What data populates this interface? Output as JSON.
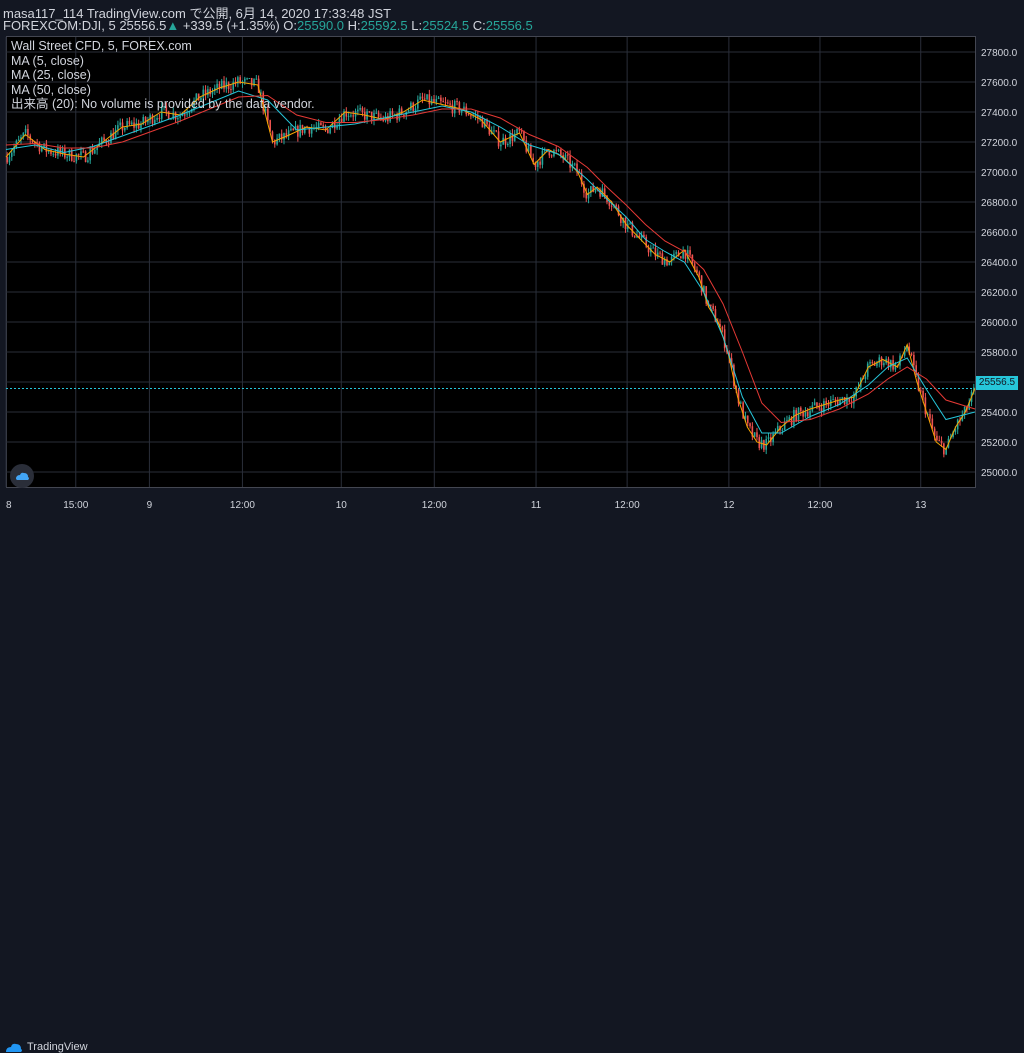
{
  "header": {
    "line1": "masa117_114 TradingView.com で公開, 6月 14, 2020 17:33:48 JST",
    "symbol": "FOREXCOM:DJI, 5",
    "last": "25556.5",
    "change": "+339.5 (+1.35%)",
    "o_label": "O:",
    "o": "25590.0",
    "h_label": "H:",
    "h": "25592.5",
    "l_label": "L:",
    "l": "25524.5",
    "c_label": "C:",
    "c": "25556.5"
  },
  "legend": {
    "title": "Wall Street CFD, 5, FOREX.com",
    "ma5": "MA (5, close)",
    "ma25": "MA (25, close)",
    "ma50": "MA (50, close)",
    "volume": "出来高 (20): No volume is provided by the data vendor."
  },
  "price_tag": "25556.5",
  "footer": {
    "brand": "TradingView"
  },
  "colors": {
    "up": "#26a69a",
    "down": "#ef5350",
    "ma5": "#f7a600",
    "ma25": "#26c6da",
    "ma50": "#e53935",
    "grid": "#2a2e39",
    "text": "#d1d4dc",
    "price_line": "#26c6da"
  },
  "chart_data": {
    "type": "line",
    "title": "Wall Street CFD, 5, FOREX.com",
    "xlabel": "",
    "ylabel": "",
    "ylim": [
      24900,
      27900
    ],
    "y_ticks": [
      25000,
      25200,
      25400,
      25600,
      25800,
      26000,
      26200,
      26400,
      26600,
      26800,
      27000,
      27200,
      27400,
      27600,
      27800
    ],
    "y_tick_labels": [
      "25000.0",
      "25200.0",
      "25400.0",
      "25600.0",
      "25800.0",
      "26000.0",
      "26200.0",
      "26400.0",
      "26600.0",
      "26800.0",
      "27000.0",
      "27200.0",
      "27400.0",
      "27600.0",
      "27800.0"
    ],
    "x_ticks": [
      {
        "label": "8",
        "x": 0.0
      },
      {
        "label": "15:00",
        "x": 0.072
      },
      {
        "label": "9",
        "x": 0.148
      },
      {
        "label": "12:00",
        "x": 0.244
      },
      {
        "label": "10",
        "x": 0.346
      },
      {
        "label": "12:00",
        "x": 0.442
      },
      {
        "label": "11",
        "x": 0.547
      },
      {
        "label": "12:00",
        "x": 0.641
      },
      {
        "label": "12",
        "x": 0.746
      },
      {
        "label": "12:00",
        "x": 0.84
      },
      {
        "label": "13",
        "x": 0.944
      }
    ],
    "grid": true,
    "series": [
      {
        "name": "MA (5, close)",
        "x": [
          0.0,
          0.02,
          0.04,
          0.06,
          0.08,
          0.1,
          0.12,
          0.14,
          0.16,
          0.18,
          0.2,
          0.22,
          0.24,
          0.26,
          0.275,
          0.29,
          0.31,
          0.33,
          0.35,
          0.37,
          0.39,
          0.41,
          0.43,
          0.45,
          0.47,
          0.49,
          0.51,
          0.53,
          0.545,
          0.56,
          0.575,
          0.59,
          0.6,
          0.61,
          0.625,
          0.64,
          0.655,
          0.67,
          0.685,
          0.7,
          0.715,
          0.725,
          0.735,
          0.745,
          0.755,
          0.765,
          0.775,
          0.785,
          0.8,
          0.815,
          0.83,
          0.845,
          0.86,
          0.875,
          0.89,
          0.905,
          0.92,
          0.93,
          0.94,
          0.95,
          0.96,
          0.97,
          0.98,
          0.99,
          1.0
        ],
        "values": [
          27100,
          27250,
          27150,
          27120,
          27100,
          27200,
          27300,
          27320,
          27400,
          27380,
          27500,
          27560,
          27600,
          27580,
          27200,
          27240,
          27300,
          27280,
          27400,
          27380,
          27350,
          27400,
          27480,
          27450,
          27420,
          27350,
          27200,
          27260,
          27050,
          27150,
          27100,
          27000,
          26850,
          26900,
          26800,
          26650,
          26550,
          26450,
          26400,
          26480,
          26300,
          26100,
          26000,
          25800,
          25500,
          25300,
          25200,
          25180,
          25300,
          25380,
          25420,
          25450,
          25480,
          25500,
          25700,
          25750,
          25700,
          25850,
          25600,
          25400,
          25200,
          25150,
          25300,
          25400,
          25556
        ]
      },
      {
        "name": "MA (25, close)",
        "x": [
          0.0,
          0.03,
          0.06,
          0.09,
          0.12,
          0.15,
          0.18,
          0.21,
          0.24,
          0.27,
          0.3,
          0.33,
          0.36,
          0.39,
          0.42,
          0.45,
          0.48,
          0.51,
          0.54,
          0.57,
          0.6,
          0.62,
          0.64,
          0.66,
          0.68,
          0.7,
          0.72,
          0.74,
          0.76,
          0.78,
          0.8,
          0.83,
          0.86,
          0.89,
          0.91,
          0.93,
          0.95,
          0.97,
          1.0
        ],
        "values": [
          27150,
          27180,
          27130,
          27170,
          27240,
          27310,
          27380,
          27460,
          27540,
          27480,
          27280,
          27300,
          27320,
          27360,
          27400,
          27440,
          27400,
          27300,
          27180,
          27120,
          26950,
          26820,
          26700,
          26550,
          26470,
          26400,
          26200,
          25900,
          25500,
          25260,
          25260,
          25370,
          25450,
          25580,
          25700,
          25760,
          25550,
          25350,
          25400
        ]
      },
      {
        "name": "MA (50, close)",
        "x": [
          0.0,
          0.03,
          0.06,
          0.09,
          0.12,
          0.15,
          0.18,
          0.21,
          0.24,
          0.27,
          0.3,
          0.33,
          0.36,
          0.39,
          0.42,
          0.45,
          0.48,
          0.51,
          0.54,
          0.57,
          0.6,
          0.62,
          0.64,
          0.66,
          0.68,
          0.7,
          0.72,
          0.74,
          0.76,
          0.78,
          0.8,
          0.83,
          0.86,
          0.89,
          0.91,
          0.93,
          0.95,
          0.97,
          1.0
        ],
        "values": [
          27180,
          27190,
          27160,
          27160,
          27200,
          27270,
          27340,
          27420,
          27500,
          27510,
          27380,
          27330,
          27330,
          27350,
          27380,
          27420,
          27420,
          27360,
          27250,
          27170,
          27030,
          26900,
          26780,
          26650,
          26540,
          26470,
          26350,
          26120,
          25800,
          25460,
          25330,
          25350,
          25420,
          25520,
          25620,
          25700,
          25620,
          25480,
          25420
        ]
      }
    ],
    "last_price": 25556.5
  }
}
